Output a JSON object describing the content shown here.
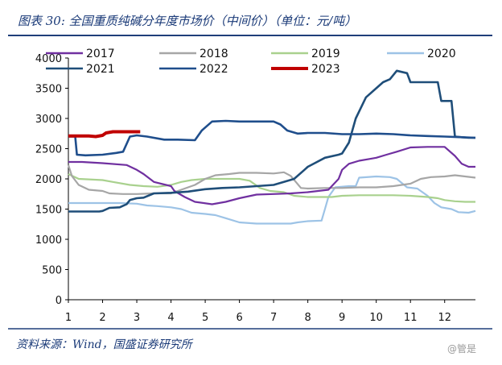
{
  "title": "图表 30:  全国重质纯碱分年度市场价（中间价）（单位：元/吨）",
  "source": "资料来源：Wind，国盛证券研究所",
  "watermark": "@管是",
  "colors": {
    "header_rule": "#1f3f7a",
    "axis": "#000000"
  },
  "chart_data": {
    "type": "line",
    "xlabel": "",
    "ylabel": "",
    "xlim": [
      1,
      12.9
    ],
    "ylim": [
      0,
      4000
    ],
    "x_ticks": [
      1,
      2,
      3,
      4,
      5,
      6,
      7,
      8,
      9,
      10,
      11,
      12
    ],
    "y_ticks": [
      0,
      500,
      1000,
      1500,
      2000,
      2500,
      3000,
      3500,
      4000
    ],
    "grid": false,
    "legend": "top",
    "series": [
      {
        "name": "2017",
        "color": "#7030a0",
        "points": [
          [
            1.0,
            2280
          ],
          [
            1.4,
            2280
          ],
          [
            2.0,
            2260
          ],
          [
            2.7,
            2230
          ],
          [
            3.0,
            2150
          ],
          [
            3.2,
            2080
          ],
          [
            3.5,
            1950
          ],
          [
            4.0,
            1880
          ],
          [
            4.1,
            1800
          ],
          [
            4.4,
            1700
          ],
          [
            4.7,
            1620
          ],
          [
            5.2,
            1580
          ],
          [
            5.6,
            1620
          ],
          [
            6.0,
            1680
          ],
          [
            6.5,
            1740
          ],
          [
            7.0,
            1750
          ],
          [
            7.5,
            1760
          ],
          [
            8.0,
            1780
          ],
          [
            8.6,
            1820
          ],
          [
            8.9,
            2000
          ],
          [
            9.0,
            2150
          ],
          [
            9.2,
            2250
          ],
          [
            9.5,
            2300
          ],
          [
            9.8,
            2330
          ],
          [
            10.0,
            2350
          ],
          [
            10.3,
            2400
          ],
          [
            10.6,
            2450
          ],
          [
            11.0,
            2520
          ],
          [
            11.5,
            2530
          ],
          [
            12.0,
            2530
          ],
          [
            12.3,
            2380
          ],
          [
            12.5,
            2250
          ],
          [
            12.7,
            2200
          ],
          [
            12.9,
            2200
          ]
        ]
      },
      {
        "name": "2018",
        "color": "#a6a6a6",
        "points": [
          [
            1.0,
            2230
          ],
          [
            1.1,
            2050
          ],
          [
            1.3,
            1900
          ],
          [
            1.6,
            1820
          ],
          [
            2.0,
            1800
          ],
          [
            2.2,
            1760
          ],
          [
            2.6,
            1750
          ],
          [
            3.0,
            1750
          ],
          [
            3.5,
            1760
          ],
          [
            4.0,
            1760
          ],
          [
            4.3,
            1820
          ],
          [
            4.7,
            1900
          ],
          [
            5.0,
            2000
          ],
          [
            5.3,
            2060
          ],
          [
            5.7,
            2080
          ],
          [
            6.0,
            2100
          ],
          [
            6.5,
            2100
          ],
          [
            7.0,
            2090
          ],
          [
            7.3,
            2110
          ],
          [
            7.5,
            2050
          ],
          [
            7.8,
            1850
          ],
          [
            8.0,
            1840
          ],
          [
            8.5,
            1850
          ],
          [
            9.0,
            1850
          ],
          [
            9.5,
            1860
          ],
          [
            10.0,
            1860
          ],
          [
            10.5,
            1880
          ],
          [
            11.0,
            1920
          ],
          [
            11.3,
            2000
          ],
          [
            11.6,
            2030
          ],
          [
            12.0,
            2040
          ],
          [
            12.3,
            2060
          ],
          [
            12.6,
            2040
          ],
          [
            12.9,
            2020
          ]
        ]
      },
      {
        "name": "2019",
        "color": "#a9d18e",
        "points": [
          [
            1.0,
            2080
          ],
          [
            1.3,
            2000
          ],
          [
            2.0,
            1980
          ],
          [
            2.3,
            1950
          ],
          [
            2.8,
            1900
          ],
          [
            3.2,
            1880
          ],
          [
            3.6,
            1870
          ],
          [
            4.0,
            1900
          ],
          [
            4.3,
            1950
          ],
          [
            4.6,
            1980
          ],
          [
            5.0,
            2000
          ],
          [
            5.5,
            2000
          ],
          [
            6.0,
            2000
          ],
          [
            6.3,
            1970
          ],
          [
            6.6,
            1850
          ],
          [
            6.9,
            1800
          ],
          [
            7.3,
            1780
          ],
          [
            7.6,
            1720
          ],
          [
            8.0,
            1700
          ],
          [
            8.3,
            1700
          ],
          [
            8.7,
            1700
          ],
          [
            9.0,
            1720
          ],
          [
            9.5,
            1730
          ],
          [
            10.0,
            1730
          ],
          [
            10.5,
            1730
          ],
          [
            11.0,
            1720
          ],
          [
            11.5,
            1700
          ],
          [
            11.8,
            1680
          ],
          [
            12.0,
            1650
          ],
          [
            12.3,
            1630
          ],
          [
            12.6,
            1620
          ],
          [
            12.9,
            1620
          ]
        ]
      },
      {
        "name": "2020",
        "color": "#9dc3e6",
        "points": [
          [
            1.0,
            1600
          ],
          [
            1.5,
            1600
          ],
          [
            2.0,
            1600
          ],
          [
            2.5,
            1600
          ],
          [
            3.0,
            1590
          ],
          [
            3.3,
            1560
          ],
          [
            3.6,
            1550
          ],
          [
            4.0,
            1530
          ],
          [
            4.3,
            1500
          ],
          [
            4.6,
            1440
          ],
          [
            5.0,
            1420
          ],
          [
            5.3,
            1400
          ],
          [
            5.6,
            1350
          ],
          [
            6.0,
            1280
          ],
          [
            6.5,
            1260
          ],
          [
            7.0,
            1260
          ],
          [
            7.5,
            1260
          ],
          [
            7.7,
            1280
          ],
          [
            8.0,
            1300
          ],
          [
            8.4,
            1310
          ],
          [
            8.5,
            1500
          ],
          [
            8.6,
            1700
          ],
          [
            8.8,
            1860
          ],
          [
            9.2,
            1880
          ],
          [
            9.4,
            1880
          ],
          [
            9.5,
            2020
          ],
          [
            10.0,
            2040
          ],
          [
            10.4,
            2030
          ],
          [
            10.6,
            2000
          ],
          [
            10.9,
            1860
          ],
          [
            11.2,
            1840
          ],
          [
            11.5,
            1720
          ],
          [
            11.7,
            1600
          ],
          [
            11.9,
            1530
          ],
          [
            12.2,
            1500
          ],
          [
            12.4,
            1450
          ],
          [
            12.7,
            1440
          ],
          [
            12.9,
            1470
          ]
        ]
      },
      {
        "name": "2021",
        "color": "#1f4e79",
        "points": [
          [
            1.0,
            1460
          ],
          [
            1.5,
            1460
          ],
          [
            1.9,
            1460
          ],
          [
            2.0,
            1470
          ],
          [
            2.2,
            1520
          ],
          [
            2.5,
            1530
          ],
          [
            2.7,
            1580
          ],
          [
            2.8,
            1650
          ],
          [
            3.0,
            1680
          ],
          [
            3.2,
            1690
          ],
          [
            3.5,
            1760
          ],
          [
            4.0,
            1770
          ],
          [
            4.5,
            1790
          ],
          [
            5.0,
            1830
          ],
          [
            5.5,
            1850
          ],
          [
            6.0,
            1860
          ],
          [
            6.5,
            1880
          ],
          [
            7.0,
            1900
          ],
          [
            7.3,
            1950
          ],
          [
            7.6,
            2000
          ],
          [
            7.9,
            2150
          ],
          [
            8.0,
            2200
          ],
          [
            8.2,
            2260
          ],
          [
            8.5,
            2350
          ],
          [
            8.9,
            2400
          ],
          [
            9.0,
            2420
          ],
          [
            9.2,
            2600
          ],
          [
            9.4,
            3000
          ],
          [
            9.7,
            3350
          ],
          [
            10.0,
            3500
          ],
          [
            10.2,
            3600
          ],
          [
            10.4,
            3650
          ],
          [
            10.6,
            3790
          ],
          [
            10.9,
            3750
          ],
          [
            11.0,
            3600
          ],
          [
            11.3,
            3600
          ],
          [
            11.5,
            3600
          ],
          [
            11.8,
            3600
          ],
          [
            11.9,
            3290
          ],
          [
            12.2,
            3290
          ],
          [
            12.3,
            2700
          ],
          [
            12.5,
            2690
          ],
          [
            12.7,
            2680
          ],
          [
            12.9,
            2680
          ]
        ]
      },
      {
        "name": "2022",
        "color": "#1f4e8c",
        "points": [
          [
            1.0,
            2700
          ],
          [
            1.2,
            2700
          ],
          [
            1.25,
            2400
          ],
          [
            1.5,
            2390
          ],
          [
            2.0,
            2400
          ],
          [
            2.4,
            2430
          ],
          [
            2.6,
            2450
          ],
          [
            2.8,
            2700
          ],
          [
            3.0,
            2720
          ],
          [
            3.3,
            2700
          ],
          [
            3.8,
            2650
          ],
          [
            4.2,
            2650
          ],
          [
            4.7,
            2640
          ],
          [
            4.9,
            2800
          ],
          [
            5.2,
            2950
          ],
          [
            5.6,
            2960
          ],
          [
            6.0,
            2950
          ],
          [
            6.5,
            2950
          ],
          [
            7.0,
            2950
          ],
          [
            7.2,
            2900
          ],
          [
            7.4,
            2800
          ],
          [
            7.7,
            2750
          ],
          [
            8.0,
            2760
          ],
          [
            8.5,
            2760
          ],
          [
            9.0,
            2740
          ],
          [
            9.5,
            2740
          ],
          [
            10.0,
            2750
          ],
          [
            10.5,
            2740
          ],
          [
            11.0,
            2720
          ],
          [
            11.5,
            2710
          ],
          [
            12.0,
            2700
          ],
          [
            12.5,
            2690
          ],
          [
            12.9,
            2680
          ]
        ]
      },
      {
        "name": "2023",
        "color": "#c00000",
        "points": [
          [
            1.0,
            2710
          ],
          [
            1.4,
            2710
          ],
          [
            1.6,
            2710
          ],
          [
            1.8,
            2700
          ],
          [
            2.0,
            2720
          ],
          [
            2.1,
            2760
          ],
          [
            2.3,
            2780
          ],
          [
            2.6,
            2780
          ],
          [
            2.8,
            2780
          ],
          [
            3.1,
            2780
          ]
        ]
      }
    ]
  }
}
